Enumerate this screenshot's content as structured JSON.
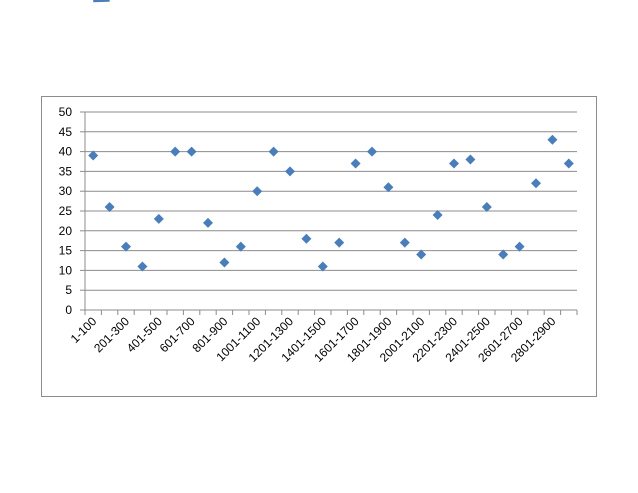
{
  "chart_data": {
    "type": "line",
    "categories": [
      "1-100",
      null,
      "201-300",
      null,
      "401-500",
      null,
      "601-700",
      null,
      "801-900",
      null,
      "1001-1100",
      null,
      "1201-1300",
      null,
      "1401-1500",
      null,
      "1601-1700",
      null,
      "1801-1900",
      null,
      "2001-2100",
      null,
      "2201-2300",
      null,
      "2401-2500",
      null,
      "2601-2700",
      null,
      "2801-2900",
      null
    ],
    "values": [
      39,
      26,
      16,
      11,
      23,
      40,
      40,
      22,
      12,
      16,
      30,
      40,
      35,
      18,
      11,
      17,
      37,
      40,
      31,
      17,
      14,
      24,
      37,
      38,
      26,
      14,
      16,
      32,
      43,
      37
    ],
    "color": "#4a7ebb",
    "ylim": [
      0,
      50
    ],
    "yticks": [
      0,
      5,
      10,
      15,
      20,
      25,
      30,
      35,
      40,
      45,
      50
    ],
    "grid": true
  }
}
